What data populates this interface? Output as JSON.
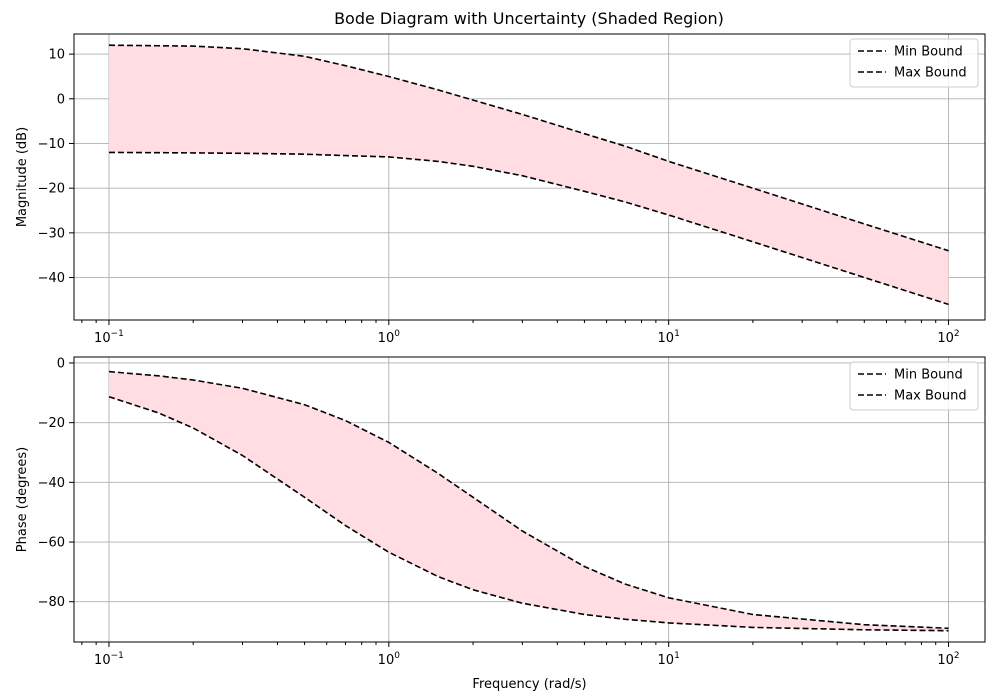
{
  "figure": {
    "title": "Bode Diagram with Uncertainty (Shaded Region)"
  },
  "colors": {
    "fill": "#ffdde3",
    "line": "#000000",
    "grid": "#b0b0b0"
  },
  "chart_data": [
    {
      "type": "area",
      "panel": "magnitude",
      "title": "Bode Diagram with Uncertainty (Shaded Region)",
      "xlabel": "",
      "ylabel": "Magnitude (dB)",
      "xscale": "log",
      "xlim": [
        0.075,
        135
      ],
      "ylim": [
        -49.5,
        14.5
      ],
      "xticks": [
        0.1,
        1,
        10,
        100
      ],
      "xtick_labels": [
        {
          "base": "10",
          "exp": "−1"
        },
        {
          "base": "10",
          "exp": "0"
        },
        {
          "base": "10",
          "exp": "1"
        },
        {
          "base": "10",
          "exp": "2"
        }
      ],
      "yticks": [
        10,
        0,
        -10,
        -20,
        -30,
        -40
      ],
      "ytick_labels": [
        "10",
        "0",
        "−10",
        "−20",
        "−30",
        "−40"
      ],
      "grid": true,
      "legend": {
        "placement": "top-right",
        "entries": [
          "Min Bound",
          "Max Bound"
        ]
      },
      "x": [
        0.1,
        0.2,
        0.3,
        0.5,
        0.7,
        1,
        1.5,
        2,
        3,
        5,
        7,
        10,
        20,
        50,
        100
      ],
      "series": [
        {
          "name": "Min Bound",
          "style": "dashed",
          "values": [
            -12,
            -12.1,
            -12.2,
            -12.4,
            -12.7,
            -13.0,
            -14.0,
            -15.1,
            -17.2,
            -20.7,
            -23.1,
            -26.0,
            -32.0,
            -40.0,
            -46.0
          ]
        },
        {
          "name": "Max Bound",
          "style": "dashed",
          "values": [
            12,
            11.8,
            11.2,
            9.5,
            7.4,
            5.0,
            2.0,
            -0.3,
            -3.5,
            -7.8,
            -10.6,
            -14.0,
            -20.0,
            -28.0,
            -34.0
          ]
        }
      ]
    },
    {
      "type": "area",
      "panel": "phase",
      "title": "",
      "xlabel": "Frequency (rad/s)",
      "ylabel": "Phase (degrees)",
      "xscale": "log",
      "xlim": [
        0.075,
        135
      ],
      "ylim": [
        -93.5,
        2
      ],
      "xticks": [
        0.1,
        1,
        10,
        100
      ],
      "xtick_labels": [
        {
          "base": "10",
          "exp": "−1"
        },
        {
          "base": "10",
          "exp": "0"
        },
        {
          "base": "10",
          "exp": "1"
        },
        {
          "base": "10",
          "exp": "2"
        }
      ],
      "yticks": [
        0,
        -20,
        -40,
        -60,
        -80
      ],
      "ytick_labels": [
        "0",
        "−20",
        "−40",
        "−60",
        "−80"
      ],
      "grid": true,
      "legend": {
        "placement": "top-right",
        "entries": [
          "Min Bound",
          "Max Bound"
        ]
      },
      "x": [
        0.1,
        0.15,
        0.2,
        0.3,
        0.5,
        0.7,
        1,
        1.5,
        2,
        3,
        5,
        7,
        10,
        20,
        50,
        100
      ],
      "series": [
        {
          "name": "Min Bound",
          "style": "dashed",
          "values": [
            -11.3,
            -16.7,
            -21.8,
            -31.0,
            -45.0,
            -54.5,
            -63.4,
            -71.6,
            -76.0,
            -80.5,
            -84.3,
            -85.9,
            -87.1,
            -88.6,
            -89.4,
            -89.7
          ]
        },
        {
          "name": "Max Bound",
          "style": "dashed",
          "values": [
            -2.9,
            -4.3,
            -5.7,
            -8.5,
            -14.0,
            -19.3,
            -26.6,
            -37.0,
            -45.0,
            -56.3,
            -68.2,
            -74.1,
            -78.7,
            -84.3,
            -87.7,
            -88.9
          ]
        }
      ]
    }
  ]
}
